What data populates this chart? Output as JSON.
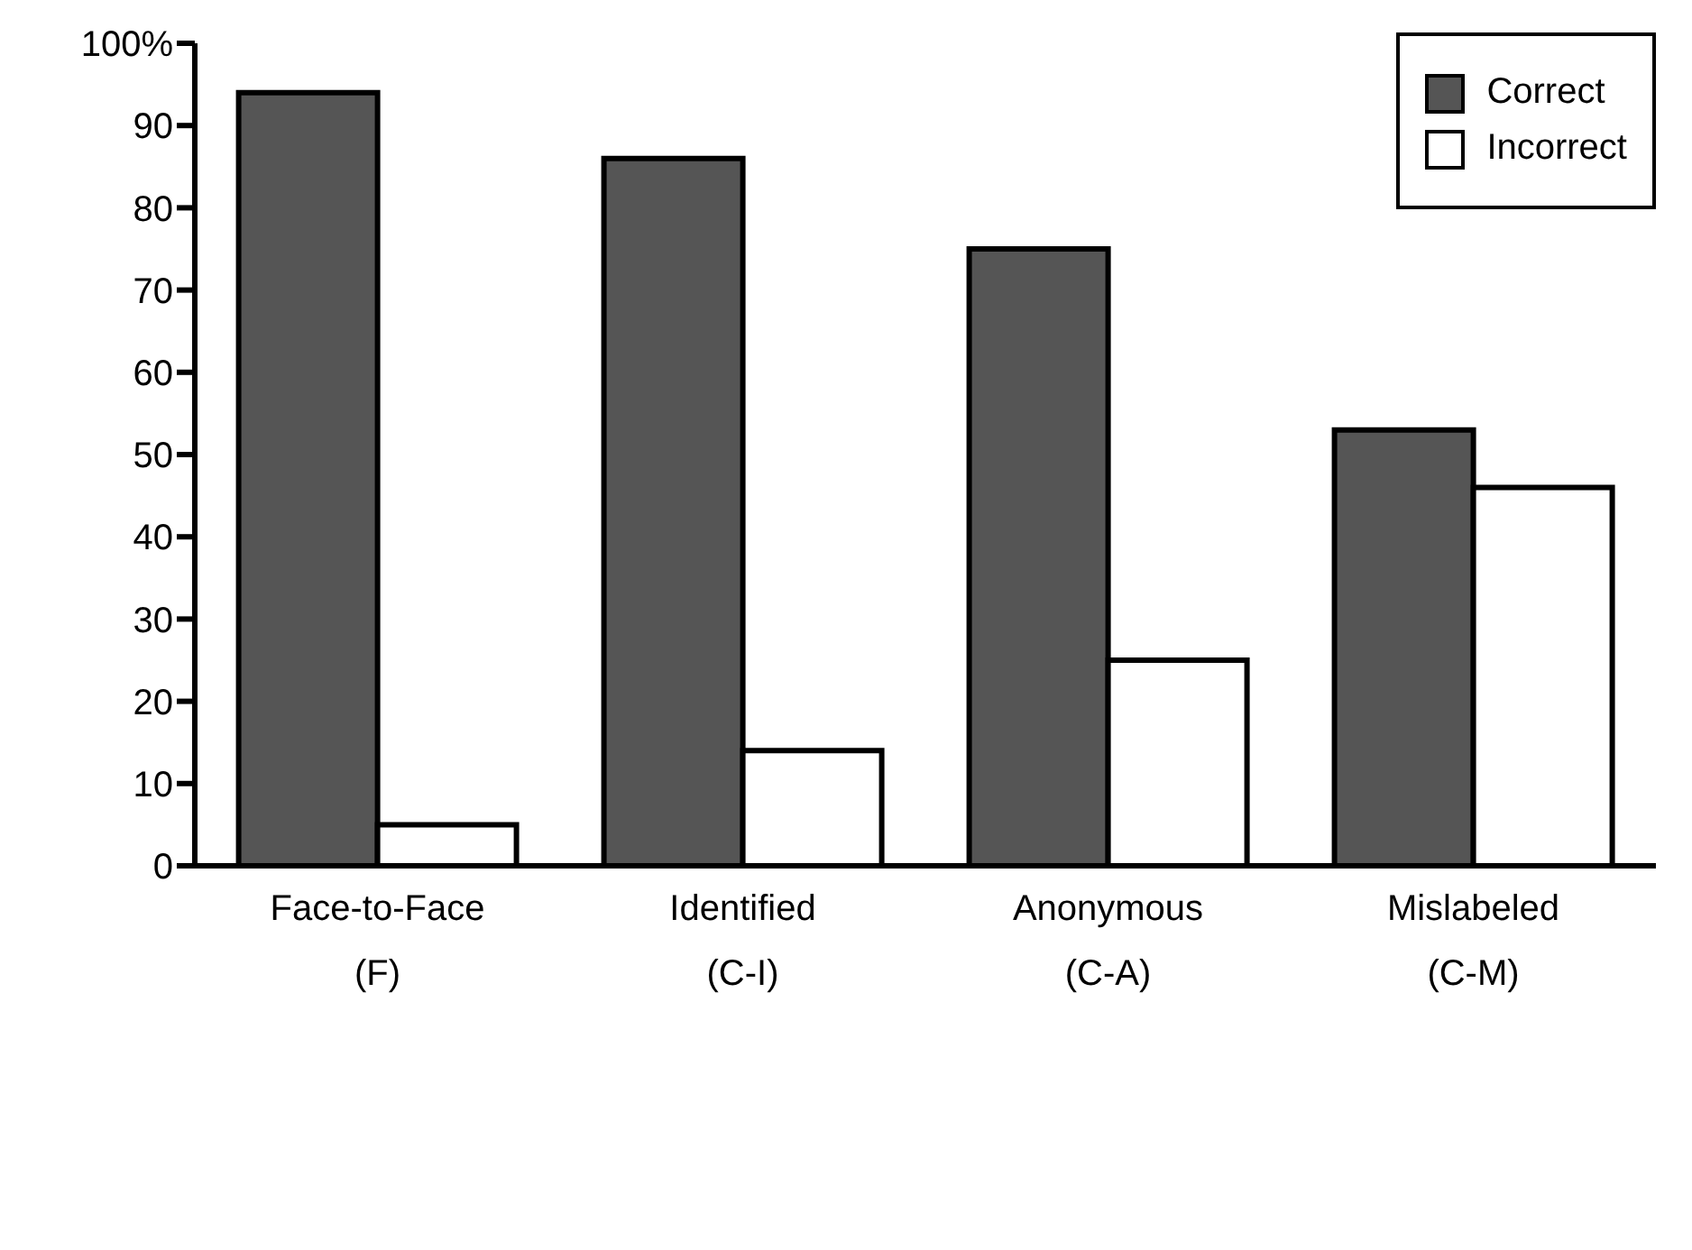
{
  "chart_data": {
    "type": "bar",
    "categories": [
      "Face-to-Face\n(F)",
      "Identified\n(C-I)",
      "Anonymous\n(C-A)",
      "Mislabeled\n(C-M)"
    ],
    "series": [
      {
        "name": "Correct",
        "color": "#555555",
        "values": [
          94,
          86,
          75,
          53
        ]
      },
      {
        "name": "Incorrect",
        "color": "#ffffff",
        "values": [
          5,
          14,
          25,
          46
        ]
      }
    ],
    "ylim": [
      0,
      100
    ],
    "yticks": [
      0,
      10,
      20,
      30,
      40,
      50,
      60,
      70,
      80,
      90,
      {
        "value": 100,
        "label": "100%"
      }
    ],
    "grid": false,
    "legend": "top right"
  }
}
